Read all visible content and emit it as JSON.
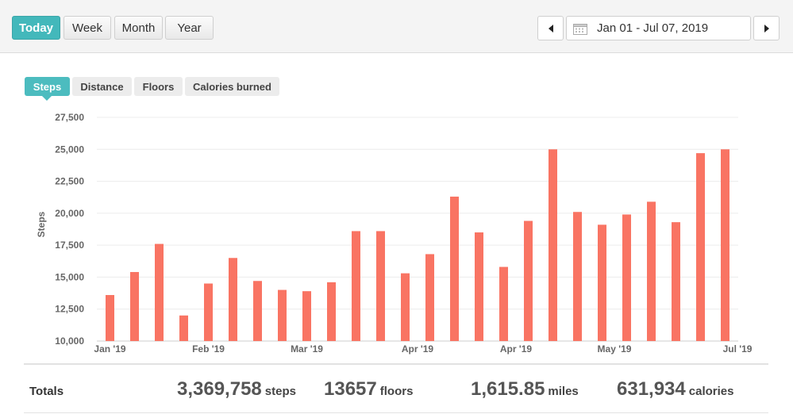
{
  "period_tabs": [
    {
      "label": "Today",
      "active": true
    },
    {
      "label": "Week",
      "active": false
    },
    {
      "label": "Month",
      "active": false
    },
    {
      "label": "Year",
      "active": false
    }
  ],
  "date_range": "Jan 01 - Jul 07, 2019",
  "metric_tabs": [
    {
      "label": "Steps",
      "active": true
    },
    {
      "label": "Distance",
      "active": false
    },
    {
      "label": "Floors",
      "active": false
    },
    {
      "label": "Calories burned",
      "active": false
    }
  ],
  "colors": {
    "accent": "#43b8bb",
    "bar": "#f97463"
  },
  "chart_data": {
    "type": "bar",
    "ylabel": "Steps",
    "ylim": [
      10000,
      27500
    ],
    "yticks": [
      "10,000",
      "12,500",
      "15,000",
      "17,500",
      "20,000",
      "22,500",
      "25,000",
      "27,500"
    ],
    "ytick_values": [
      10000,
      12500,
      15000,
      17500,
      20000,
      22500,
      25000,
      27500
    ],
    "xtick_labels": [
      {
        "label": "Jan '19",
        "at": 0
      },
      {
        "label": "Feb '19",
        "at": 4
      },
      {
        "label": "Mar '19",
        "at": 8
      },
      {
        "label": "Apr '19",
        "at": 12.5
      },
      {
        "label": "Apr '19",
        "at": 16.5
      },
      {
        "label": "May '19",
        "at": 20.5
      },
      {
        "label": "Jul '19",
        "at": 25.5
      }
    ],
    "values": [
      13600,
      15400,
      17600,
      12000,
      14500,
      16500,
      14700,
      14000,
      13900,
      14600,
      18600,
      18600,
      15300,
      16800,
      21300,
      18500,
      15800,
      19400,
      25000,
      20100,
      19100,
      19900,
      20900,
      19300,
      24700,
      25000
    ],
    "grid": true,
    "legend": "none"
  },
  "totals": {
    "label": "Totals",
    "steps": {
      "value": "3,369,758",
      "unit": "steps"
    },
    "floors": {
      "value": "13657",
      "unit": "floors"
    },
    "miles": {
      "value": "1,615.85",
      "unit": "miles"
    },
    "calories": {
      "value": "631,934",
      "unit": "calories"
    }
  }
}
